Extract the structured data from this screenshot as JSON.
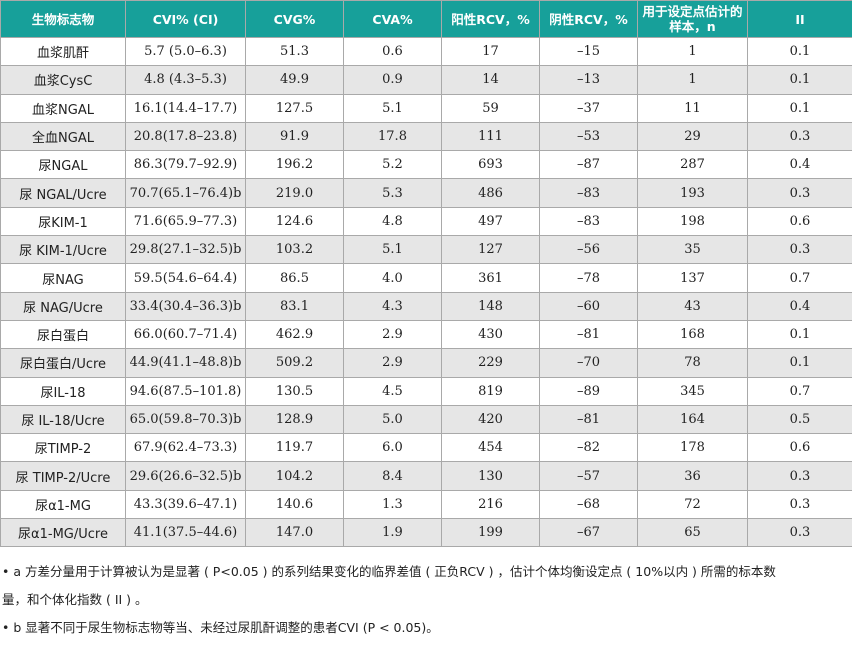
{
  "table": {
    "headers": [
      "生物标志物",
      "CVI% (CI)",
      "CVG%",
      "CVA%",
      "阳性RCV，%",
      "阴性RCV，%",
      "用于设定点估计的样本，n",
      "II"
    ],
    "rows": [
      [
        "血浆肌酐",
        "5.7 (5.0–6.3)",
        "51.3",
        "0.6",
        "17",
        "–15",
        "1",
        "0.1"
      ],
      [
        "血浆CysC",
        "4.8 (4.3–5.3)",
        "49.9",
        "0.9",
        "14",
        "–13",
        "1",
        "0.1"
      ],
      [
        "血浆NGAL",
        "16.1(14.4–17.7)",
        "127.5",
        "5.1",
        "59",
        "–37",
        "11",
        "0.1"
      ],
      [
        "全血NGAL",
        "20.8(17.8–23.8)",
        "91.9",
        "17.8",
        "111",
        "–53",
        "29",
        "0.3"
      ],
      [
        "尿NGAL",
        "86.3(79.7–92.9)",
        "196.2",
        "5.2",
        "693",
        "–87",
        "287",
        "0.4"
      ],
      [
        "尿 NGAL/Ucre",
        "70.7(65.1–76.4)b",
        "219.0",
        "5.3",
        "486",
        "–83",
        "193",
        "0.3"
      ],
      [
        "尿KIM-1",
        "71.6(65.9–77.3)",
        "124.6",
        "4.8",
        "497",
        "–83",
        "198",
        "0.6"
      ],
      [
        "尿 KIM-1/Ucre",
        "29.8(27.1–32.5)b",
        "103.2",
        "5.1",
        "127",
        "–56",
        "35",
        "0.3"
      ],
      [
        "尿NAG",
        "59.5(54.6–64.4)",
        "86.5",
        "4.0",
        "361",
        "–78",
        "137",
        "0.7"
      ],
      [
        "尿 NAG/Ucre",
        "33.4(30.4–36.3)b",
        "83.1",
        "4.3",
        "148",
        "–60",
        "43",
        "0.4"
      ],
      [
        "尿白蛋白",
        "66.0(60.7–71.4)",
        "462.9",
        "2.9",
        "430",
        "–81",
        "168",
        "0.1"
      ],
      [
        "尿白蛋白/Ucre",
        "44.9(41.1–48.8)b",
        "509.2",
        "2.9",
        "229",
        "–70",
        "78",
        "0.1"
      ],
      [
        "尿IL-18",
        "94.6(87.5–101.8)",
        "130.5",
        "4.5",
        "819",
        "–89",
        "345",
        "0.7"
      ],
      [
        "尿 IL-18/Ucre",
        "65.0(59.8–70.3)b",
        "128.9",
        "5.0",
        "420",
        "–81",
        "164",
        "0.5"
      ],
      [
        "尿TIMP-2",
        "67.9(62.4–73.3)",
        "119.7",
        "6.0",
        "454",
        "–82",
        "178",
        "0.6"
      ],
      [
        "尿 TIMP-2/Ucre",
        "29.6(26.6–32.5)b",
        "104.2",
        "8.4",
        "130",
        "–57",
        "36",
        "0.3"
      ],
      [
        "尿α1-MG",
        "43.3(39.6–47.1)",
        "140.6",
        "1.3",
        "216",
        "–68",
        "72",
        "0.3"
      ],
      [
        "尿α1-MG/Ucre",
        "41.1(37.5–44.6)",
        "147.0",
        "1.9",
        "199",
        "–67",
        "65",
        "0.3"
      ]
    ]
  },
  "notes": [
    "• a 方差分量用于计算被认为是显著 ( P<0.05 ) 的系列结果变化的临界差值 ( 正负RCV ) ，估计个体均衡设定点 ( 10%以内 ) 所需的标本数",
    "量，和个体化指数 ( II ) 。",
    "• b 显著不同于尿生物标志物等当、未经过尿肌酐调整的患者CVI (P < 0.05)。"
  ],
  "colors": {
    "header_bg": "#17a09a",
    "header_text": "#ffffff",
    "stripe": "#e6e6e6",
    "border": "#a9a9a9"
  }
}
